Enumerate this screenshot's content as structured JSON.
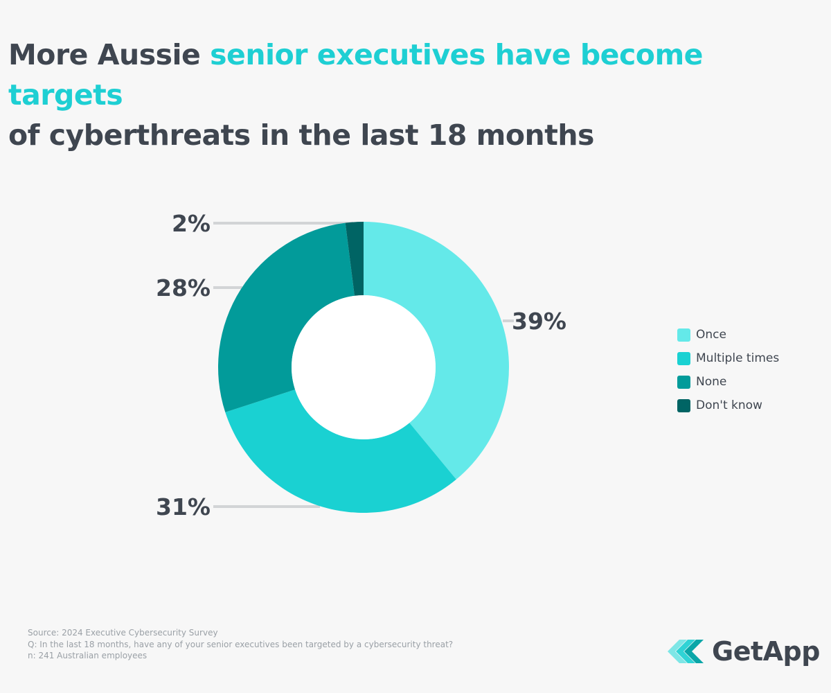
{
  "title": {
    "part1": "More Aussie ",
    "highlight": "senior executives have become targets",
    "part2": "of cyberthreats in the last 18 months"
  },
  "chart_data": {
    "type": "pie",
    "donut": true,
    "categories": [
      "Once",
      "Multiple times",
      "None",
      "Don't know"
    ],
    "values": [
      39,
      31,
      28,
      2
    ],
    "labels": [
      "39%",
      "31%",
      "28%",
      "2%"
    ],
    "colors": [
      "#64e9e9",
      "#1ad1d2",
      "#029b9a",
      "#006464"
    ],
    "legend_position": "right"
  },
  "footer": {
    "source": "Source: 2024 Executive Cybersecurity Survey",
    "question": "Q: In the last 18 months, have any of your senior executives been targeted by a cybersecurity threat?",
    "sample": "n: 241 Australian employees"
  },
  "brand": {
    "name": "GetApp",
    "icon": "getapp-logo-icon"
  }
}
